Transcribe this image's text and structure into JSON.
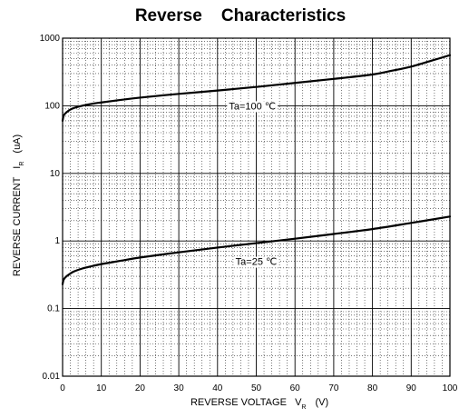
{
  "chart_data": {
    "type": "line",
    "title": "Reverse    Characteristics",
    "xlabel": {
      "main": "REVERSE VOLTAGE   V",
      "sub": "R",
      "unit": "(V)"
    },
    "ylabel": {
      "main": "REVERSE CURRENT   I",
      "sub": "R",
      "unit": "(uA)"
    },
    "xlim": [
      0,
      100
    ],
    "ylim": [
      0.01,
      1000
    ],
    "yscale": "log",
    "grid": true,
    "x_ticks": [
      "0",
      "10",
      "20",
      "30",
      "40",
      "50",
      "60",
      "70",
      "80",
      "90",
      "100"
    ],
    "y_ticks": [
      "0.01",
      "0.1",
      "1",
      "10",
      "100",
      "1000"
    ],
    "series": [
      {
        "name": "Ta=100 ℃",
        "color": "#000000",
        "x": [
          0,
          0.3,
          1,
          2,
          3,
          5,
          8,
          10,
          15,
          20,
          30,
          40,
          50,
          60,
          70,
          80,
          85,
          90,
          95,
          100
        ],
        "y": [
          60,
          72,
          80,
          88,
          93,
          100,
          108,
          112,
          122,
          132,
          150,
          168,
          190,
          218,
          250,
          290,
          330,
          380,
          460,
          560
        ]
      },
      {
        "name": "Ta=25 ℃",
        "color": "#000000",
        "x": [
          0,
          0.3,
          1,
          2,
          3,
          5,
          8,
          10,
          15,
          20,
          30,
          40,
          50,
          60,
          70,
          80,
          90,
          100
        ],
        "y": [
          0.23,
          0.27,
          0.3,
          0.33,
          0.355,
          0.39,
          0.43,
          0.455,
          0.51,
          0.57,
          0.68,
          0.8,
          0.93,
          1.08,
          1.27,
          1.5,
          1.85,
          2.3
        ]
      }
    ],
    "annotations": [
      {
        "text": "Ta=100 ℃",
        "x": 49,
        "y": 100
      },
      {
        "text": "Ta=25 ℃",
        "x": 50,
        "y": 0.5
      }
    ]
  }
}
